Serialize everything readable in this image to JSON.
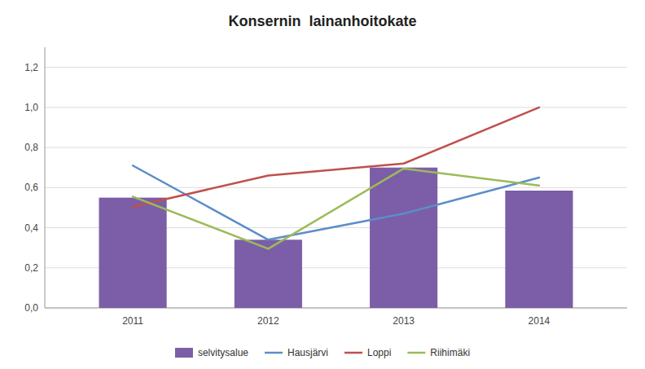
{
  "chart_data": {
    "type": "bar",
    "title": "Konsernin  lainanhoitokate",
    "categories": [
      "2011",
      "2012",
      "2013",
      "2014"
    ],
    "series": [
      {
        "name": "selvitysalue",
        "type": "bar",
        "color": "#7B5EA7",
        "values": [
          0.55,
          0.34,
          0.7,
          0.585
        ]
      },
      {
        "name": "Hausjärvi",
        "type": "line",
        "color": "#5B8DC8",
        "values": [
          0.71,
          0.34,
          0.47,
          0.65
        ]
      },
      {
        "name": "Loppi",
        "type": "line",
        "color": "#C0504D",
        "values": [
          0.505,
          0.66,
          0.72,
          1.0
        ]
      },
      {
        "name": "Riihimäki",
        "type": "line",
        "color": "#9BBB59",
        "values": [
          0.555,
          0.295,
          0.695,
          0.61
        ]
      }
    ],
    "ylim": [
      0,
      1.3
    ],
    "yticks": [
      {
        "value": 0.0,
        "label": "0,0"
      },
      {
        "value": 0.2,
        "label": "0,2"
      },
      {
        "value": 0.4,
        "label": "0,4"
      },
      {
        "value": 0.6,
        "label": "0,6"
      },
      {
        "value": 0.8,
        "label": "0,8"
      },
      {
        "value": 1.0,
        "label": "1,0"
      },
      {
        "value": 1.2,
        "label": "1,2"
      }
    ],
    "grid": true,
    "legend": "bottom"
  }
}
